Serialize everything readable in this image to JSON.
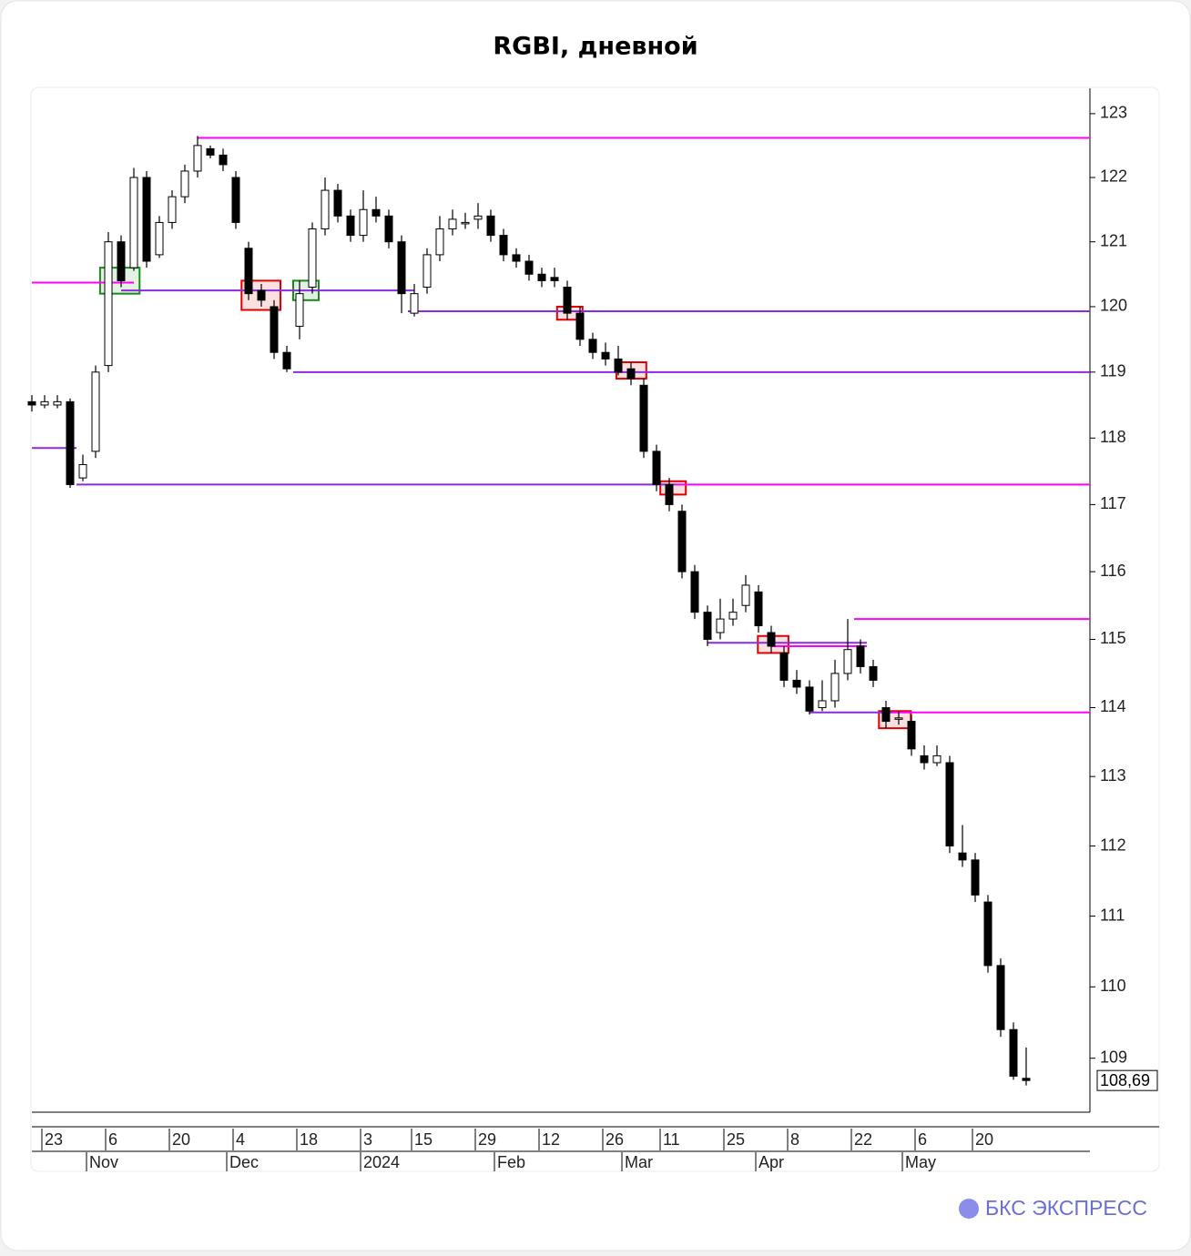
{
  "chart_data": {
    "type": "candlestick",
    "title": "RGBI, дневной",
    "x": [
      0,
      2,
      4,
      6,
      8,
      10,
      12,
      14,
      16,
      18,
      20,
      22,
      24,
      26,
      28,
      30,
      32,
      34,
      36,
      38,
      40,
      42,
      44,
      46,
      48,
      50,
      52,
      54,
      56,
      58,
      60,
      62,
      64,
      66,
      68,
      70,
      72,
      74,
      76,
      78,
      80,
      82,
      84,
      86,
      88,
      90,
      92,
      94,
      96,
      98,
      100,
      102,
      104,
      106,
      108,
      110,
      112,
      114,
      116,
      118,
      120,
      122,
      124,
      126,
      128,
      130,
      132,
      134,
      136,
      138,
      140,
      142,
      144,
      146,
      148,
      150,
      152,
      154,
      156
    ],
    "open": [
      118.55,
      118.5,
      118.5,
      118.55,
      117.4,
      117.8,
      119.1,
      121.0,
      120.6,
      122.0,
      120.8,
      121.3,
      121.7,
      122.1,
      122.45,
      122.35,
      122.0,
      120.9,
      120.25,
      120.0,
      119.3,
      119.7,
      120.3,
      121.2,
      121.8,
      121.4,
      121.1,
      121.5,
      121.4,
      121.0,
      119.9,
      120.3,
      120.8,
      121.2,
      121.3,
      121.35,
      121.4,
      121.1,
      120.8,
      120.7,
      120.5,
      120.45,
      120.3,
      119.9,
      119.5,
      119.3,
      119.2,
      119.05,
      118.8,
      117.8,
      117.3,
      116.9,
      116.0,
      115.4,
      115.1,
      115.3,
      115.5,
      115.7,
      115.1,
      114.8,
      114.4,
      114.3,
      114.0,
      114.1,
      114.5,
      114.9,
      114.6,
      114.0,
      113.85,
      113.8,
      113.3,
      113.2,
      113.2,
      111.9,
      111.8,
      111.2,
      110.3,
      109.4,
      108.72
    ],
    "high": [
      118.65,
      118.65,
      118.65,
      118.6,
      117.75,
      119.1,
      121.15,
      121.1,
      122.15,
      122.1,
      121.4,
      121.8,
      122.2,
      122.65,
      122.5,
      122.45,
      122.1,
      121.0,
      120.35,
      120.1,
      119.4,
      120.4,
      121.3,
      122.0,
      121.9,
      121.5,
      121.8,
      121.7,
      121.5,
      121.1,
      120.35,
      120.9,
      121.4,
      121.5,
      121.45,
      121.6,
      121.5,
      121.2,
      120.9,
      120.8,
      120.6,
      120.6,
      120.4,
      120.0,
      119.6,
      119.45,
      119.4,
      119.15,
      118.9,
      117.9,
      117.4,
      117.0,
      116.1,
      115.5,
      115.6,
      115.6,
      115.95,
      115.8,
      115.2,
      114.9,
      114.55,
      114.4,
      114.4,
      114.7,
      115.3,
      115.0,
      114.7,
      114.1,
      113.95,
      113.9,
      113.45,
      113.45,
      113.3,
      112.3,
      111.9,
      111.3,
      110.4,
      109.5,
      109.15
    ],
    "low": [
      118.4,
      118.45,
      118.45,
      117.25,
      117.35,
      117.7,
      119.0,
      120.3,
      120.55,
      120.6,
      120.75,
      121.2,
      121.6,
      122.0,
      122.3,
      122.1,
      121.2,
      120.1,
      120.0,
      119.2,
      119.0,
      119.5,
      120.2,
      121.1,
      121.3,
      121.0,
      121.0,
      121.3,
      120.9,
      119.9,
      119.85,
      120.2,
      120.7,
      121.1,
      121.2,
      121.2,
      121.0,
      120.7,
      120.6,
      120.4,
      120.3,
      120.3,
      119.8,
      119.4,
      119.2,
      119.1,
      118.95,
      118.8,
      117.7,
      117.2,
      116.9,
      115.9,
      115.3,
      114.9,
      115.0,
      115.2,
      115.4,
      115.1,
      114.8,
      114.3,
      114.2,
      113.9,
      113.95,
      114.0,
      114.4,
      114.5,
      114.3,
      113.7,
      113.75,
      113.3,
      113.1,
      113.15,
      111.9,
      111.7,
      111.2,
      110.2,
      109.3,
      108.7,
      108.62
    ],
    "close": [
      118.5,
      118.55,
      118.55,
      117.3,
      117.6,
      119.0,
      121.0,
      120.4,
      122.0,
      120.7,
      121.3,
      121.7,
      122.1,
      122.5,
      122.35,
      122.2,
      121.3,
      120.2,
      120.1,
      119.3,
      119.05,
      120.2,
      121.2,
      121.8,
      121.4,
      121.1,
      121.5,
      121.4,
      121.0,
      120.2,
      120.2,
      120.8,
      121.2,
      121.35,
      121.3,
      121.4,
      121.1,
      120.8,
      120.7,
      120.5,
      120.4,
      120.4,
      119.9,
      119.5,
      119.3,
      119.2,
      119.0,
      118.9,
      117.8,
      117.3,
      117.0,
      116.0,
      115.4,
      115.0,
      115.3,
      115.4,
      115.8,
      115.2,
      114.9,
      114.4,
      114.3,
      113.95,
      114.1,
      114.5,
      114.85,
      114.6,
      114.4,
      113.8,
      113.85,
      113.4,
      113.2,
      113.3,
      112.0,
      111.8,
      111.3,
      110.3,
      109.4,
      108.75,
      108.69
    ],
    "up_color": "#ffffff",
    "down_color": "#000000",
    "xlim": [
      0,
      166
    ],
    "ylim": [
      108.25,
      123.4
    ],
    "log_scale": true,
    "yticks": [
      109,
      110,
      111,
      112,
      113,
      114,
      115,
      116,
      117,
      118,
      119,
      120,
      121,
      122,
      123
    ],
    "xticks": [
      {
        "value": 2,
        "label": "23"
      },
      {
        "value": 12,
        "label": "6"
      },
      {
        "value": 22,
        "label": "20"
      },
      {
        "value": 32,
        "label": "4"
      },
      {
        "value": 42,
        "label": "18"
      },
      {
        "value": 52,
        "label": "3"
      },
      {
        "value": 60,
        "label": "15"
      },
      {
        "value": 70,
        "label": "29"
      },
      {
        "value": 80,
        "label": "12"
      },
      {
        "value": 90,
        "label": "26"
      },
      {
        "value": 99,
        "label": "11"
      },
      {
        "value": 109,
        "label": "25"
      },
      {
        "value": 119,
        "label": "8"
      },
      {
        "value": 129,
        "label": "22"
      },
      {
        "value": 139,
        "label": "6"
      },
      {
        "value": 148,
        "label": "20"
      }
    ],
    "month_ticks": [
      {
        "value": 9,
        "label": "Nov"
      },
      {
        "value": 31,
        "label": "Dec"
      },
      {
        "value": 52,
        "label": "2024"
      },
      {
        "value": 73,
        "label": "Feb"
      },
      {
        "value": 93,
        "label": "Mar"
      },
      {
        "value": 114,
        "label": "Apr"
      },
      {
        "value": 137,
        "label": "May"
      }
    ],
    "levels": [
      {
        "y": 122.62,
        "x": [
          26,
          166
        ],
        "color": "#ff00ff"
      },
      {
        "y": 120.37,
        "x": [
          0,
          16
        ],
        "color": "#ff00ff"
      },
      {
        "y": 120.25,
        "x": [
          14,
          60
        ],
        "color": "#8a2be2"
      },
      {
        "y": 119.93,
        "x": [
          59,
          166
        ],
        "color": "#8a2be2"
      },
      {
        "y": 119.0,
        "x": [
          41,
          166
        ],
        "color": "#8a2be2"
      },
      {
        "y": 117.85,
        "x": [
          0,
          7
        ],
        "color": "#8a2be2"
      },
      {
        "y": 117.3,
        "x": [
          7,
          101
        ],
        "color": "#8a2be2"
      },
      {
        "y": 117.3,
        "x": [
          101,
          166
        ],
        "color": "#ff00ff"
      },
      {
        "y": 115.3,
        "x": [
          129,
          166
        ],
        "color": "#ff00ff"
      },
      {
        "y": 114.95,
        "x": [
          106,
          131
        ],
        "color": "#8a2be2"
      },
      {
        "y": 114.9,
        "x": [
          116,
          131
        ],
        "color": "#ff00ff"
      },
      {
        "y": 113.93,
        "x": [
          122,
          135
        ],
        "color": "#8a2be2"
      },
      {
        "y": 113.93,
        "x": [
          135,
          166
        ],
        "color": "#ff00ff"
      }
    ],
    "boxes": [
      {
        "x": [
          10.7,
          16.9
        ],
        "y": [
          120.2,
          120.6
        ],
        "color": "#1a8a1a"
      },
      {
        "x": [
          41,
          45
        ],
        "y": [
          120.1,
          120.4
        ],
        "color": "#1a8a1a"
      },
      {
        "x": [
          32.9,
          39
        ],
        "y": [
          119.95,
          120.4
        ],
        "color": "#e00000"
      },
      {
        "x": [
          82.4,
          86.4
        ],
        "y": [
          119.8,
          120.0
        ],
        "color": "#e00000"
      },
      {
        "x": [
          91.7,
          96.4
        ],
        "y": [
          118.9,
          119.15
        ],
        "color": "#e00000"
      },
      {
        "x": [
          98.6,
          102.6
        ],
        "y": [
          117.15,
          117.35
        ],
        "color": "#e00000"
      },
      {
        "x": [
          113.9,
          118.7
        ],
        "y": [
          114.8,
          115.05
        ],
        "color": "#e00000"
      },
      {
        "x": [
          132.9,
          137.9
        ],
        "y": [
          113.7,
          113.95
        ],
        "color": "#e00000"
      }
    ],
    "last_value": 108.69,
    "last_value_label": "108,69"
  },
  "brand": "БКС ЭКСПРЕСС"
}
